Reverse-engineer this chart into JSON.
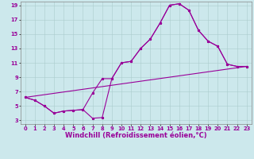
{
  "xlabel": "Windchill (Refroidissement éolien,°C)",
  "background_color": "#cce8ec",
  "line_color": "#990099",
  "xlim": [
    -0.5,
    23.5
  ],
  "ylim": [
    2.5,
    19.5
  ],
  "yticks": [
    3,
    5,
    7,
    9,
    11,
    13,
    15,
    17,
    19
  ],
  "xticks": [
    0,
    1,
    2,
    3,
    4,
    5,
    6,
    7,
    8,
    9,
    10,
    11,
    12,
    13,
    14,
    15,
    16,
    17,
    18,
    19,
    20,
    21,
    22,
    23
  ],
  "series1_x": [
    0,
    1,
    2,
    3,
    4,
    5,
    6,
    7,
    8,
    9,
    10,
    11,
    12,
    13,
    14,
    15,
    16,
    17,
    18,
    19,
    20,
    21,
    22,
    23
  ],
  "series1_y": [
    6.2,
    5.8,
    5.0,
    4.0,
    4.3,
    4.4,
    4.5,
    3.3,
    3.4,
    8.8,
    11.0,
    11.2,
    13.0,
    14.3,
    16.5,
    19.0,
    19.2,
    18.3,
    15.5,
    14.0,
    13.3,
    10.8,
    10.5,
    10.5
  ],
  "series2_x": [
    0,
    1,
    2,
    3,
    4,
    5,
    6,
    7,
    8,
    9,
    10,
    11,
    12,
    13,
    14,
    15,
    16,
    17,
    18,
    19,
    20,
    21,
    22,
    23
  ],
  "series2_y": [
    6.2,
    5.8,
    5.0,
    4.0,
    4.3,
    4.4,
    4.5,
    6.8,
    8.8,
    8.8,
    11.0,
    11.2,
    13.0,
    14.3,
    16.5,
    19.0,
    19.2,
    18.3,
    15.5,
    14.0,
    13.3,
    10.8,
    10.5,
    10.5
  ],
  "series3_x": [
    0,
    23
  ],
  "series3_y": [
    6.2,
    10.5
  ],
  "grid_color": "#aacccc",
  "tick_fontsize": 4.8,
  "xlabel_fontsize": 6.0,
  "marker_size": 2.0,
  "line_width": 0.8
}
